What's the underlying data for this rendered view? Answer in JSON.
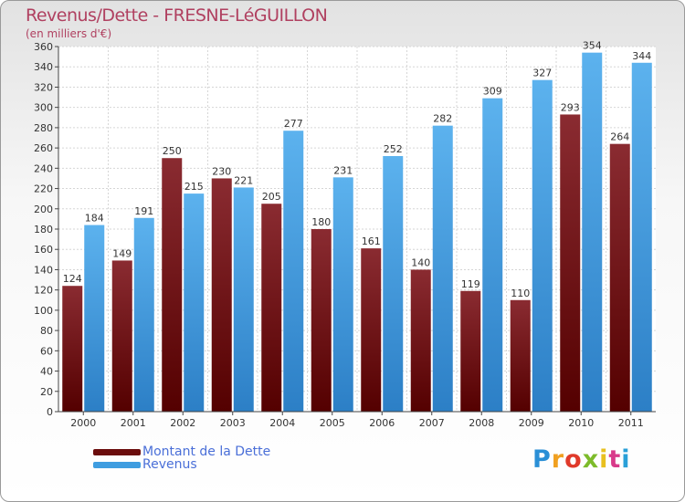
{
  "header": {
    "title": "Revenus/Dette - FRESNE-LéGUILLON",
    "subtitle": "(en milliers d'€)"
  },
  "legend": {
    "items": [
      {
        "label": "Montant de la Dette",
        "color": "#6b0d0d"
      },
      {
        "label": "Revenus",
        "color": "#3f9de0"
      }
    ]
  },
  "logo": {
    "text": "Proxiti"
  },
  "chart_data": {
    "type": "bar",
    "categories": [
      "2000",
      "2001",
      "2002",
      "2003",
      "2004",
      "2005",
      "2006",
      "2007",
      "2008",
      "2009",
      "2010",
      "2011"
    ],
    "series": [
      {
        "name": "Montant de la Dette",
        "values": [
          124,
          149,
          250,
          230,
          205,
          180,
          161,
          140,
          119,
          110,
          293,
          264
        ],
        "color": "#6b0d0d"
      },
      {
        "name": "Revenus",
        "values": [
          184,
          191,
          215,
          221,
          277,
          231,
          252,
          282,
          309,
          327,
          354,
          344
        ],
        "color": "#3f9de0"
      }
    ],
    "ylim": [
      0,
      360
    ],
    "ytick_step": 20,
    "grid": true,
    "legend_position": "bottom-left"
  }
}
